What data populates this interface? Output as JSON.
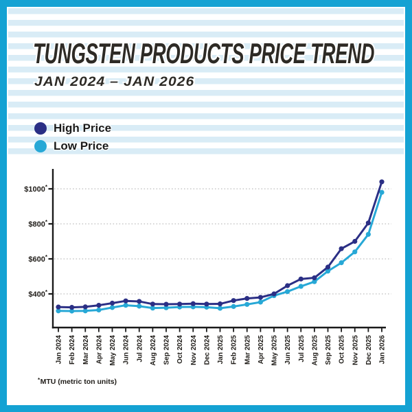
{
  "page": {
    "frame_color": "#14a2d3",
    "stripe_color": "#d9ecf6",
    "panel_color": "#ffffff"
  },
  "header": {
    "title": "TUNGSTEN PRODUCTS PRICE TREND",
    "subtitle": "JAN 2024 – JAN 2026"
  },
  "footnote": {
    "star": "*",
    "text": "MTU (metric ton units)"
  },
  "chart_data": {
    "type": "line",
    "title": "TUNGSTEN PRODUCTS PRICE TREND",
    "date_range": "JAN 2024 – JAN 2026",
    "legend_position": "top-left",
    "grid": "dotted horizontal",
    "x": [
      "Jan 2024",
      "Feb 2024",
      "Mar 2024",
      "Apr 2024",
      "May 2024",
      "Jun 2024",
      "Jul 2024",
      "Aug 2024",
      "Sep 2024",
      "Oct 2024",
      "Nov 2024",
      "Dec 2024",
      "Jan 2025",
      "Feb 2025",
      "Mar 2025",
      "Apr 2025",
      "May 2025",
      "Jun 2025",
      "Jul 2025",
      "Aug 2025",
      "Sep 2025",
      "Oct 2025",
      "Nov 2025",
      "Dec 2025",
      "Jan 2026"
    ],
    "series": [
      {
        "name": "High Price",
        "color": "#2b2f85",
        "values": [
          325,
          323,
          326,
          335,
          347,
          360,
          357,
          342,
          341,
          342,
          344,
          342,
          343,
          362,
          374,
          380,
          400,
          447,
          485,
          492,
          553,
          658,
          700,
          805,
          1040
        ]
      },
      {
        "name": "Low Price",
        "color": "#27a8d6",
        "values": [
          303,
          302,
          303,
          308,
          322,
          335,
          330,
          319,
          321,
          325,
          326,
          324,
          318,
          328,
          340,
          353,
          390,
          413,
          443,
          470,
          530,
          578,
          640,
          740,
          980
        ]
      }
    ],
    "y_axis": {
      "ticks": [
        {
          "value": 1000,
          "label": "$1000*"
        },
        {
          "value": 800,
          "label": "$800*"
        },
        {
          "value": 600,
          "label": "$600*"
        },
        {
          "value": 400,
          "label": "$400*"
        }
      ],
      "ylim": [
        250,
        1100
      ]
    },
    "colors": {
      "axis": "#1a1a1a",
      "gridline": "#c9c9c9",
      "tick_text": "#1f1c18"
    }
  }
}
